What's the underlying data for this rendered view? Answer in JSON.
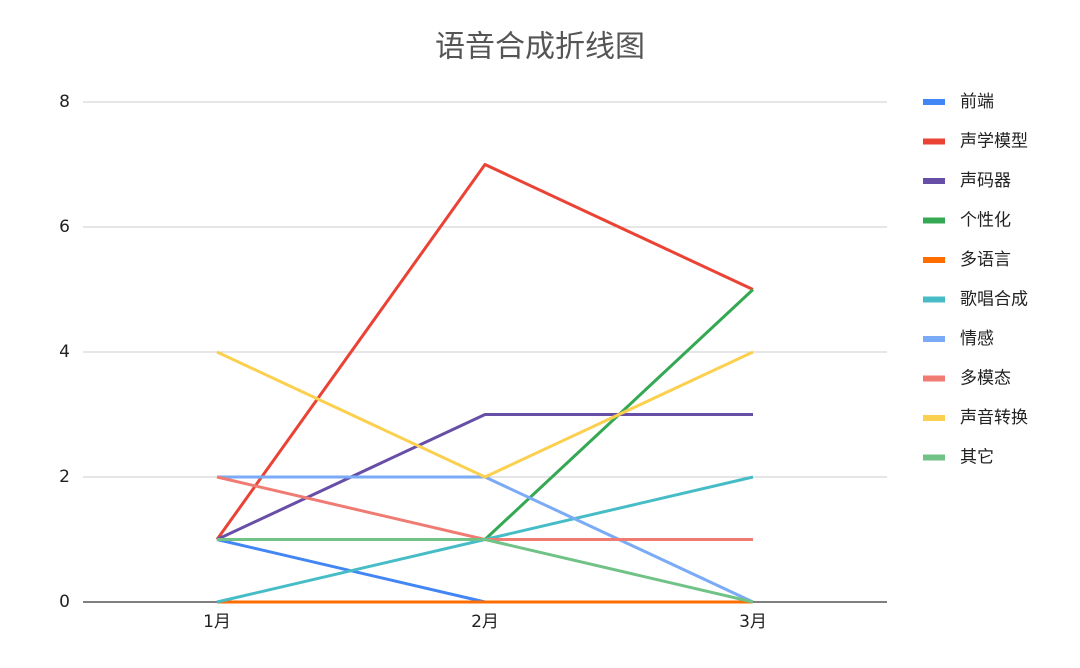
{
  "chart_data": {
    "type": "line",
    "title": "语音合成折线图",
    "categories": [
      "1月",
      "2月",
      "3月"
    ],
    "series": [
      {
        "name": "前端",
        "color": "#4285f4",
        "values": [
          1,
          0,
          0
        ]
      },
      {
        "name": "声学模型",
        "color": "#ea4335",
        "values": [
          1,
          7,
          5
        ]
      },
      {
        "name": "声码器",
        "color": "#674ea7",
        "values": [
          1,
          3,
          3
        ]
      },
      {
        "name": "个性化",
        "color": "#34a853",
        "values": [
          1,
          1,
          5
        ]
      },
      {
        "name": "多语言",
        "color": "#ff6d01",
        "values": [
          0,
          0,
          0
        ]
      },
      {
        "name": "歌唱合成",
        "color": "#46bdc6",
        "values": [
          0,
          1,
          2
        ]
      },
      {
        "name": "情感",
        "color": "#7baaf7",
        "values": [
          2,
          2,
          0
        ]
      },
      {
        "name": "多模态",
        "color": "#f07b72",
        "values": [
          2,
          1,
          1
        ]
      },
      {
        "name": "声音转换",
        "color": "#fcd04f",
        "values": [
          4,
          2,
          4
        ]
      },
      {
        "name": "其它",
        "color": "#71c287",
        "values": [
          1,
          1,
          0
        ]
      }
    ],
    "ylim": [
      0,
      8
    ],
    "yticks": [
      0,
      2,
      4,
      6,
      8
    ],
    "grid": true,
    "legend": "right"
  }
}
